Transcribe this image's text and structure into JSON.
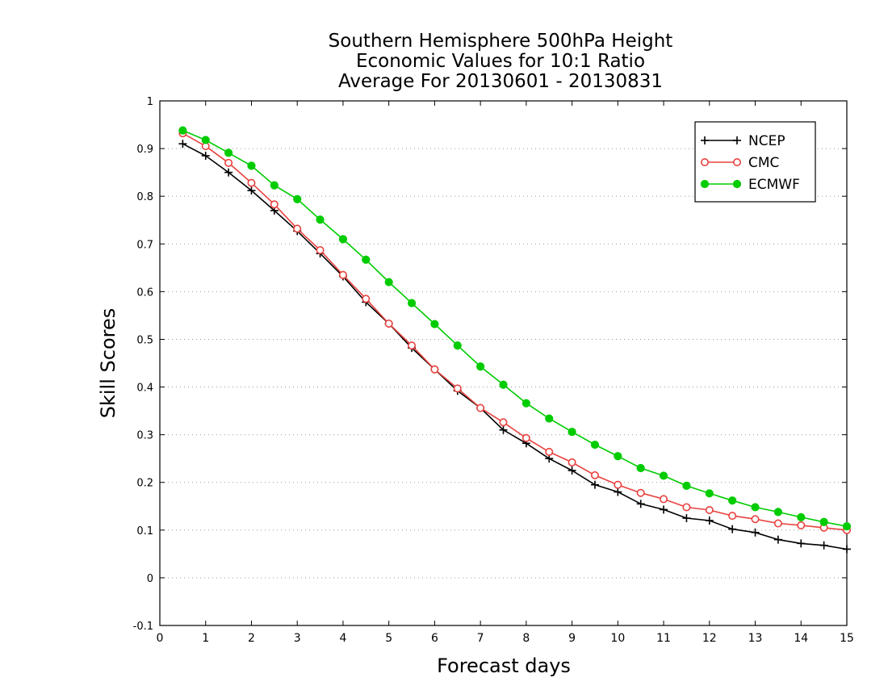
{
  "chart_data": {
    "type": "line",
    "title": [
      "Southern Hemisphere 500hPa Height",
      "Economic Values for 10:1 Ratio",
      "Average For 20130601 - 20130831"
    ],
    "xlabel": "Forecast days",
    "ylabel": "Skill Scores",
    "xlim": [
      0,
      15
    ],
    "ylim": [
      -0.1,
      1
    ],
    "x_ticks": [
      0,
      1,
      2,
      3,
      4,
      5,
      6,
      7,
      8,
      9,
      10,
      11,
      12,
      13,
      14,
      15
    ],
    "x_tick_labels": [
      "0",
      "1",
      "2",
      "3",
      "4",
      "5",
      "6",
      "7",
      "8",
      "9",
      "10",
      "11",
      "12",
      "13",
      "14",
      "15"
    ],
    "y_ticks": [
      -0.1,
      0,
      0.1,
      0.2,
      0.3,
      0.4,
      0.5,
      0.6,
      0.7,
      0.8,
      0.9,
      1
    ],
    "y_tick_labels": [
      "-0.1",
      "0",
      "0.1",
      "0.2",
      "0.3",
      "0.4",
      "0.5",
      "0.6",
      "0.7",
      "0.8",
      "0.9",
      "1"
    ],
    "grid": "horizontal dotted",
    "legend_position": "top-right",
    "x": [
      0.5,
      1,
      1.5,
      2,
      2.5,
      3,
      3.5,
      4,
      4.5,
      5,
      5.5,
      6,
      6.5,
      7,
      7.5,
      8,
      8.5,
      9,
      9.5,
      10,
      10.5,
      11,
      11.5,
      12,
      12.5,
      13,
      13.5,
      14,
      14.5,
      15
    ],
    "series": [
      {
        "name": "NCEP",
        "color": "#000000",
        "marker": "plus",
        "values": [
          0.91,
          0.885,
          0.85,
          0.812,
          0.77,
          0.727,
          0.68,
          0.632,
          0.578,
          0.533,
          0.482,
          0.437,
          0.392,
          0.356,
          0.31,
          0.282,
          0.25,
          0.225,
          0.195,
          0.18,
          0.155,
          0.143,
          0.125,
          0.12,
          0.102,
          0.095,
          0.08,
          0.072,
          0.068,
          0.06
        ]
      },
      {
        "name": "CMC",
        "color": "#e8423f",
        "marker": "open-circle",
        "values": [
          0.932,
          0.905,
          0.87,
          0.828,
          0.783,
          0.732,
          0.687,
          0.635,
          0.585,
          0.533,
          0.487,
          0.437,
          0.397,
          0.356,
          0.326,
          0.293,
          0.264,
          0.242,
          0.215,
          0.195,
          0.178,
          0.165,
          0.148,
          0.142,
          0.13,
          0.123,
          0.114,
          0.11,
          0.105,
          0.1
        ]
      },
      {
        "name": "ECMWF",
        "color": "#00cc00",
        "marker": "filled-circle",
        "values": [
          0.938,
          0.918,
          0.891,
          0.864,
          0.823,
          0.794,
          0.751,
          0.71,
          0.667,
          0.62,
          0.576,
          0.532,
          0.487,
          0.443,
          0.405,
          0.366,
          0.334,
          0.306,
          0.279,
          0.255,
          0.23,
          0.214,
          0.193,
          0.177,
          0.162,
          0.148,
          0.138,
          0.127,
          0.117,
          0.108
        ]
      }
    ]
  }
}
